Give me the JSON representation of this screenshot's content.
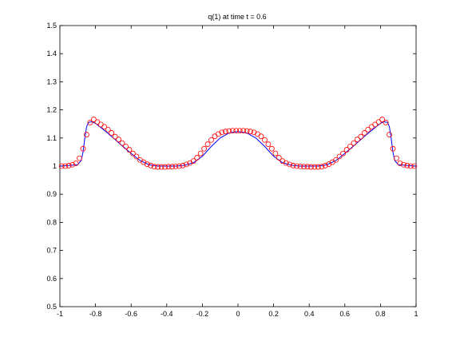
{
  "chart_data": {
    "type": "line",
    "title": "q(1)   at time t = 0.6",
    "xlabel": "",
    "ylabel": "",
    "xlim": [
      -1,
      1
    ],
    "ylim": [
      0.5,
      1.5
    ],
    "xticks": [
      -1,
      -0.8,
      -0.6,
      -0.4,
      -0.2,
      0,
      0.2,
      0.4,
      0.6,
      0.8,
      1
    ],
    "xtick_labels": [
      "-1",
      "-0.8",
      "-0.6",
      "-0.4",
      "-0.2",
      "0",
      "0.2",
      "0.4",
      "0.6",
      "0.8",
      "1"
    ],
    "yticks": [
      0.5,
      0.6,
      0.7,
      0.8,
      0.9,
      1,
      1.1,
      1.2,
      1.3,
      1.4,
      1.5
    ],
    "ytick_labels": [
      "0.5",
      "0.6",
      "0.7",
      "0.8",
      "0.9",
      "1",
      "1.1",
      "1.2",
      "1.3",
      "1.4",
      "1.5"
    ],
    "grid": false,
    "legend": "none",
    "series": [
      {
        "style": "line",
        "color": "#0000ff",
        "x": [
          -1,
          -0.9,
          -0.88,
          -0.87,
          -0.86,
          -0.85,
          -0.84,
          -0.82,
          -0.8,
          -0.75,
          -0.7,
          -0.65,
          -0.6,
          -0.55,
          -0.5,
          -0.45,
          -0.4,
          -0.35,
          -0.3,
          -0.25,
          -0.2,
          -0.15,
          -0.1,
          -0.05,
          0,
          0.05,
          0.1,
          0.15,
          0.2,
          0.25,
          0.3,
          0.35,
          0.4,
          0.45,
          0.5,
          0.55,
          0.6,
          0.65,
          0.7,
          0.75,
          0.8,
          0.82,
          0.84,
          0.85,
          0.86,
          0.87,
          0.88,
          0.9,
          1
        ],
        "y": [
          1.0,
          1.005,
          1.02,
          1.05,
          1.1,
          1.14,
          1.155,
          1.158,
          1.152,
          1.127,
          1.1,
          1.072,
          1.045,
          1.02,
          1.005,
          1.0,
          1.0,
          1.0,
          1.003,
          1.012,
          1.035,
          1.07,
          1.1,
          1.118,
          1.123,
          1.118,
          1.1,
          1.07,
          1.035,
          1.012,
          1.003,
          1.0,
          1.0,
          1.0,
          1.005,
          1.02,
          1.045,
          1.072,
          1.1,
          1.127,
          1.152,
          1.158,
          1.155,
          1.14,
          1.1,
          1.05,
          1.02,
          1.005,
          1.0
        ]
      },
      {
        "style": "markers",
        "marker": "circle",
        "color": "#ff0000",
        "x": [
          -0.99,
          -0.97,
          -0.95,
          -0.93,
          -0.91,
          -0.89,
          -0.87,
          -0.85,
          -0.83,
          -0.81,
          -0.79,
          -0.77,
          -0.75,
          -0.73,
          -0.71,
          -0.69,
          -0.67,
          -0.65,
          -0.63,
          -0.61,
          -0.59,
          -0.57,
          -0.55,
          -0.53,
          -0.51,
          -0.49,
          -0.47,
          -0.45,
          -0.43,
          -0.41,
          -0.39,
          -0.37,
          -0.35,
          -0.33,
          -0.31,
          -0.29,
          -0.27,
          -0.25,
          -0.23,
          -0.21,
          -0.19,
          -0.17,
          -0.15,
          -0.13,
          -0.11,
          -0.09,
          -0.07,
          -0.05,
          -0.03,
          -0.01,
          0.01,
          0.03,
          0.05,
          0.07,
          0.09,
          0.11,
          0.13,
          0.15,
          0.17,
          0.19,
          0.21,
          0.23,
          0.25,
          0.27,
          0.29,
          0.31,
          0.33,
          0.35,
          0.37,
          0.39,
          0.41,
          0.43,
          0.45,
          0.47,
          0.49,
          0.51,
          0.53,
          0.55,
          0.57,
          0.59,
          0.61,
          0.63,
          0.65,
          0.67,
          0.69,
          0.71,
          0.73,
          0.75,
          0.77,
          0.79,
          0.81,
          0.83,
          0.85,
          0.87,
          0.89,
          0.91,
          0.93,
          0.95,
          0.97,
          0.99
        ],
        "y": [
          1.0,
          1.0,
          1.002,
          1.005,
          1.01,
          1.028,
          1.062,
          1.112,
          1.155,
          1.166,
          1.157,
          1.148,
          1.14,
          1.13,
          1.118,
          1.105,
          1.095,
          1.082,
          1.07,
          1.058,
          1.045,
          1.034,
          1.022,
          1.014,
          1.007,
          1.002,
          0.998,
          0.997,
          0.997,
          0.997,
          0.998,
          0.998,
          0.999,
          1.0,
          1.002,
          1.006,
          1.011,
          1.018,
          1.03,
          1.045,
          1.062,
          1.078,
          1.093,
          1.106,
          1.114,
          1.12,
          1.123,
          1.125,
          1.126,
          1.126,
          1.126,
          1.126,
          1.125,
          1.123,
          1.12,
          1.114,
          1.106,
          1.093,
          1.078,
          1.062,
          1.045,
          1.03,
          1.018,
          1.011,
          1.006,
          1.002,
          1.0,
          0.999,
          0.998,
          0.998,
          0.997,
          0.997,
          0.997,
          0.998,
          1.002,
          1.007,
          1.014,
          1.022,
          1.034,
          1.045,
          1.058,
          1.07,
          1.082,
          1.095,
          1.105,
          1.118,
          1.13,
          1.14,
          1.148,
          1.157,
          1.166,
          1.155,
          1.112,
          1.062,
          1.028,
          1.01,
          1.005,
          1.002,
          1.0,
          1.0
        ]
      }
    ]
  }
}
